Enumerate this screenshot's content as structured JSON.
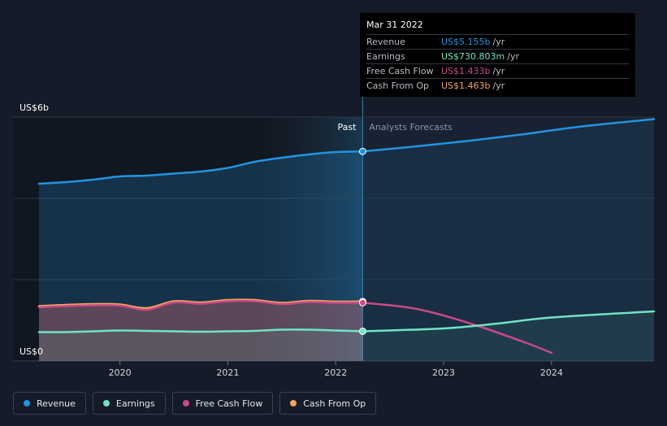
{
  "colors": {
    "revenue": "#2394df",
    "earnings": "#6fe4c4",
    "free_cash_flow": "#c94a86",
    "cash_from_op": "#f2a65e"
  },
  "tooltip": {
    "date": "Mar 31 2022",
    "rows": [
      {
        "label": "Revenue",
        "value": "US$5.155b",
        "unit": "/yr"
      },
      {
        "label": "Earnings",
        "value": "US$730.803m",
        "unit": "/yr"
      },
      {
        "label": "Free Cash Flow",
        "value": "US$1.433b",
        "unit": "/yr"
      },
      {
        "label": "Cash From Op",
        "value": "US$1.463b",
        "unit": "/yr"
      }
    ]
  },
  "legend": [
    {
      "label": "Revenue",
      "icon": "revenue-dot"
    },
    {
      "label": "Earnings",
      "icon": "earnings-dot"
    },
    {
      "label": "Free Cash Flow",
      "icon": "free-cash-flow-dot"
    },
    {
      "label": "Cash From Op",
      "icon": "cash-from-op-dot"
    }
  ],
  "chart_data": {
    "type": "line",
    "title": "",
    "xlabel": "",
    "ylabel": "",
    "ylim": [
      0,
      6
    ],
    "xlim": [
      2019.25,
      2024.95
    ],
    "y_axis_labels": [
      "US$6b",
      "US$0"
    ],
    "x_ticks": [
      2020,
      2021,
      2022,
      2023,
      2024
    ],
    "x_tick_labels": [
      "2020",
      "2021",
      "2022",
      "2023",
      "2024"
    ],
    "past_label": "Past",
    "forecast_label": "Analysts Forecasts",
    "divider_x": 2022.25,
    "highlight_start_x": 2021.25,
    "series": [
      {
        "name": "Revenue",
        "key": "revenue",
        "past": {
          "x": [
            2019.25,
            2019.5,
            2019.75,
            2020.0,
            2020.25,
            2020.5,
            2020.75,
            2021.0,
            2021.25,
            2021.5,
            2021.75,
            2022.0,
            2022.25
          ],
          "y": [
            4.36,
            4.4,
            4.46,
            4.54,
            4.56,
            4.61,
            4.66,
            4.75,
            4.9,
            5.0,
            5.08,
            5.14,
            5.155
          ]
        },
        "forecast": {
          "x": [
            2022.25,
            2022.75,
            2023.25,
            2023.75,
            2024.25,
            2024.95
          ],
          "y": [
            5.155,
            5.28,
            5.42,
            5.58,
            5.76,
            5.95
          ]
        }
      },
      {
        "name": "Earnings",
        "key": "earnings",
        "past": {
          "x": [
            2019.25,
            2019.5,
            2019.75,
            2020.0,
            2020.25,
            2020.5,
            2020.75,
            2021.0,
            2021.25,
            2021.5,
            2021.75,
            2022.0,
            2022.25
          ],
          "y": [
            0.71,
            0.71,
            0.73,
            0.75,
            0.74,
            0.73,
            0.72,
            0.73,
            0.74,
            0.77,
            0.77,
            0.75,
            0.731
          ]
        },
        "forecast": {
          "x": [
            2022.25,
            2023.0,
            2023.5,
            2024.0,
            2024.95
          ],
          "y": [
            0.731,
            0.8,
            0.92,
            1.07,
            1.22
          ]
        }
      },
      {
        "name": "Free Cash Flow",
        "key": "free_cash_flow",
        "past": {
          "x": [
            2019.25,
            2019.5,
            2019.75,
            2020.0,
            2020.25,
            2020.5,
            2020.75,
            2021.0,
            2021.25,
            2021.5,
            2021.75,
            2022.0,
            2022.25
          ],
          "y": [
            1.32,
            1.35,
            1.37,
            1.36,
            1.26,
            1.44,
            1.41,
            1.47,
            1.47,
            1.4,
            1.45,
            1.43,
            1.433
          ]
        },
        "forecast": {
          "x": [
            2022.25,
            2022.75,
            2023.25,
            2023.75,
            2024.0
          ],
          "y": [
            1.433,
            1.28,
            0.92,
            0.46,
            0.2
          ]
        }
      },
      {
        "name": "Cash From Op",
        "key": "cash_from_op",
        "past": {
          "x": [
            2019.25,
            2019.5,
            2019.75,
            2020.0,
            2020.25,
            2020.5,
            2020.75,
            2021.0,
            2021.25,
            2021.5,
            2021.75,
            2022.0,
            2022.25
          ],
          "y": [
            1.35,
            1.38,
            1.4,
            1.39,
            1.3,
            1.47,
            1.44,
            1.5,
            1.5,
            1.43,
            1.48,
            1.46,
            1.463
          ]
        }
      }
    ]
  }
}
